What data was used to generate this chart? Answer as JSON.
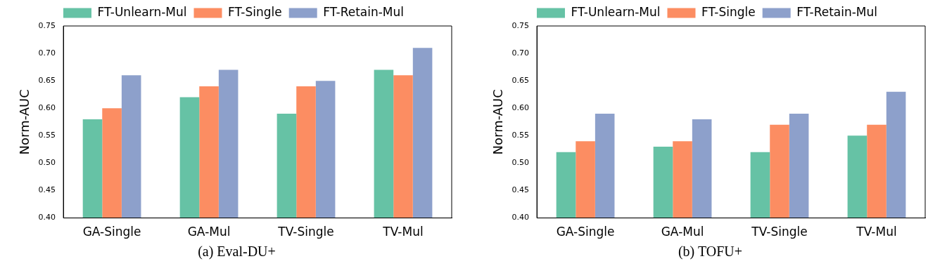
{
  "chart_data": [
    {
      "type": "bar",
      "ylabel": "Norm-AUC",
      "categories": [
        "GA-Single",
        "GA-Mul",
        "TV-Single",
        "TV-Mul"
      ],
      "series": [
        {
          "name": "FT-Unlearn-Mul",
          "color": "#66c2a5",
          "values": [
            0.58,
            0.62,
            0.59,
            0.67
          ]
        },
        {
          "name": "FT-Single",
          "color": "#fc8d62",
          "values": [
            0.6,
            0.64,
            0.64,
            0.66
          ]
        },
        {
          "name": "FT-Retain-Mul",
          "color": "#8da0cb",
          "values": [
            0.66,
            0.67,
            0.65,
            0.71
          ]
        }
      ],
      "ylim": [
        0.4,
        0.75
      ],
      "yticks": [
        {
          "value": 0.4,
          "label": "0.40"
        },
        {
          "value": 0.45,
          "label": "0.45"
        },
        {
          "value": 0.5,
          "label": "0.50"
        },
        {
          "value": 0.55,
          "label": "0.55"
        },
        {
          "value": 0.6,
          "label": "0.60"
        },
        {
          "value": 0.65,
          "label": "0.65"
        },
        {
          "value": 0.7,
          "label": "0.70"
        },
        {
          "value": 0.75,
          "label": "0.75"
        }
      ],
      "grid": false,
      "legend": "top",
      "annotations": [
        "(a) Eval-DU+"
      ]
    },
    {
      "type": "bar",
      "ylabel": "Norm-AUC",
      "categories": [
        "GA-Single",
        "GA-Mul",
        "TV-Single",
        "TV-Mul"
      ],
      "series": [
        {
          "name": "FT-Unlearn-Mul",
          "color": "#66c2a5",
          "values": [
            0.52,
            0.53,
            0.52,
            0.55
          ]
        },
        {
          "name": "FT-Single",
          "color": "#fc8d62",
          "values": [
            0.54,
            0.54,
            0.57,
            0.57
          ]
        },
        {
          "name": "FT-Retain-Mul",
          "color": "#8da0cb",
          "values": [
            0.59,
            0.58,
            0.59,
            0.63
          ]
        }
      ],
      "ylim": [
        0.4,
        0.75
      ],
      "yticks": [
        {
          "value": 0.4,
          "label": "0.40"
        },
        {
          "value": 0.45,
          "label": "0.45"
        },
        {
          "value": 0.5,
          "label": "0.50"
        },
        {
          "value": 0.55,
          "label": "0.55"
        },
        {
          "value": 0.6,
          "label": "0.60"
        },
        {
          "value": 0.65,
          "label": "0.65"
        },
        {
          "value": 0.7,
          "label": "0.70"
        },
        {
          "value": 0.75,
          "label": "0.75"
        }
      ],
      "grid": false,
      "legend": "top",
      "annotations": [
        "(b) TOFU+"
      ]
    }
  ]
}
